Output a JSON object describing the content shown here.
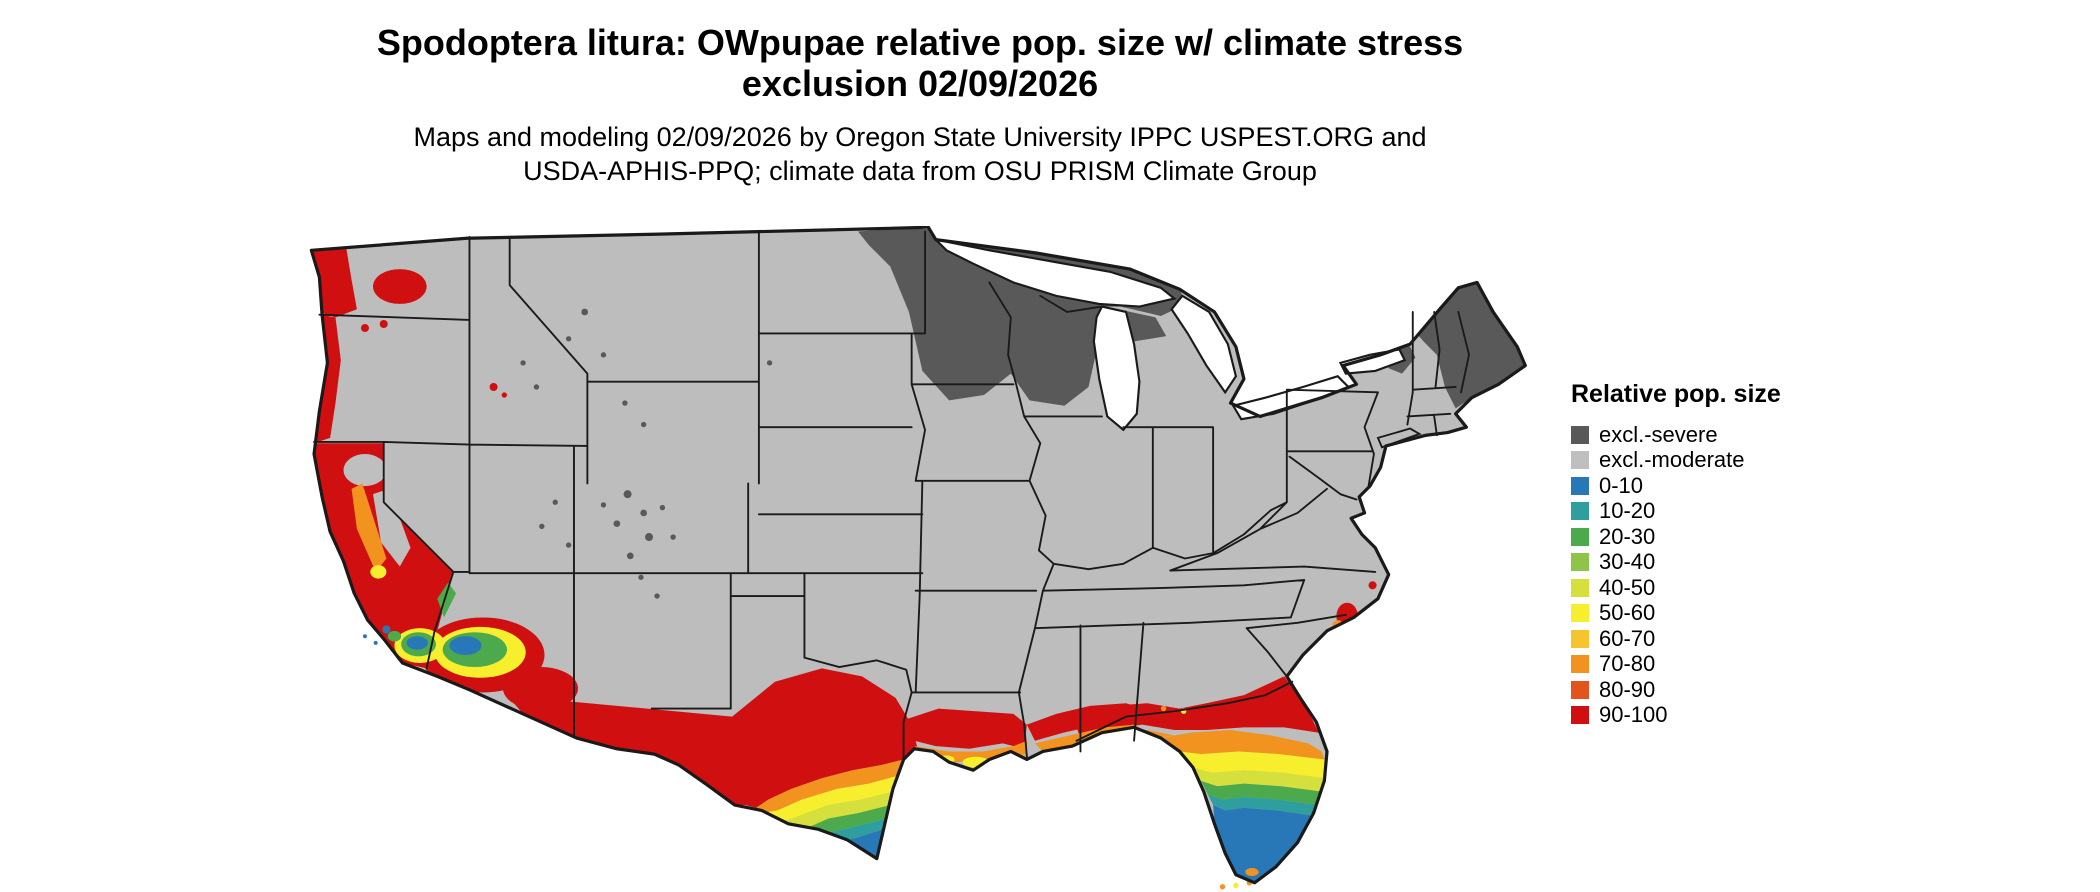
{
  "title": {
    "line1": "Spodoptera litura: OWpupae relative pop. size w/ climate stress",
    "line2": "exclusion 02/09/2026"
  },
  "subtitle": {
    "line1": "Maps and modeling 02/09/2026 by Oregon State University IPPC USPEST.ORG and",
    "line2": "USDA-APHIS-PPQ; climate data from OSU PRISM Climate Group"
  },
  "legend": {
    "title": "Relative pop. size",
    "items": [
      {
        "label": "excl.-severe",
        "color": "#595959"
      },
      {
        "label": "excl.-moderate",
        "color": "#bfbfbf"
      },
      {
        "label": "0-10",
        "color": "#2878b8"
      },
      {
        "label": "10-20",
        "color": "#2f9e9e"
      },
      {
        "label": "20-30",
        "color": "#4caa4c"
      },
      {
        "label": "30-40",
        "color": "#8ec44a"
      },
      {
        "label": "40-50",
        "color": "#d6e03c"
      },
      {
        "label": "50-60",
        "color": "#f7ef2e"
      },
      {
        "label": "60-70",
        "color": "#f6c42d"
      },
      {
        "label": "70-80",
        "color": "#f2921f"
      },
      {
        "label": "80-90",
        "color": "#e3541d"
      },
      {
        "label": "90-100",
        "color": "#d01010"
      }
    ]
  },
  "map": {
    "name": "continental-us-choropleth",
    "base_color": "#bdbdbd",
    "border_color": "#1a1a1a",
    "water_color": "#ffffff",
    "regions": {
      "excl_severe": "Minnesota, Wisconsin, upper Michigan, NE North Dakota, northern New England (Maine/NH/VT), scattered high Rockies",
      "excl_moderate": "Most of the interior United States (light gray base)",
      "pop_90_100": "Pacific coast and most of California, southern Arizona / New Mexico border, west and south-central Texas, Gulf Coast, north Florida, coastal Carolinas",
      "pop_gradient": "South Texas tip, Florida peninsula and desert Southwest cores grade orange-yellow-green down to blue (0-10)"
    }
  }
}
